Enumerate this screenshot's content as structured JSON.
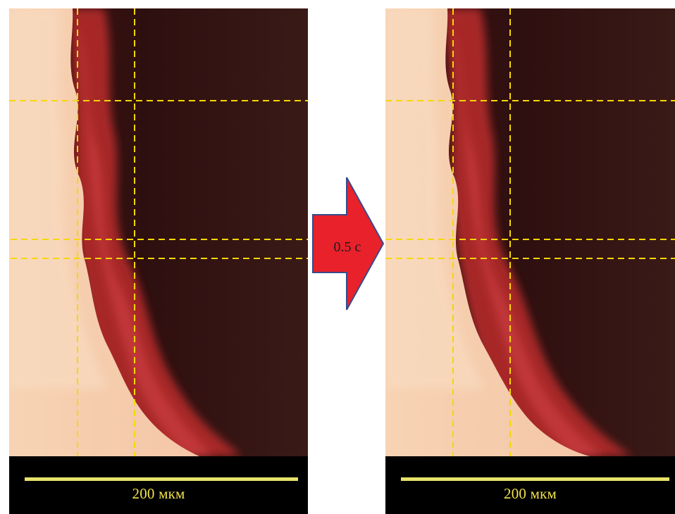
{
  "left_frame": {
    "scale_label": "200 мкм"
  },
  "right_frame": {
    "scale_label": "200 мкм"
  },
  "transition_arrow": {
    "label": "0.5 с",
    "fill_color": "#e8212b",
    "stroke_color": "#3a4a8a"
  },
  "colors": {
    "guide_lines": "#f5d800",
    "scale_bar": "#e6e36a",
    "scale_text": "#f2e24a",
    "bright_region": "#f6cfae",
    "dark_region": "#2a0e0e",
    "edge_red": "#c0302e"
  }
}
